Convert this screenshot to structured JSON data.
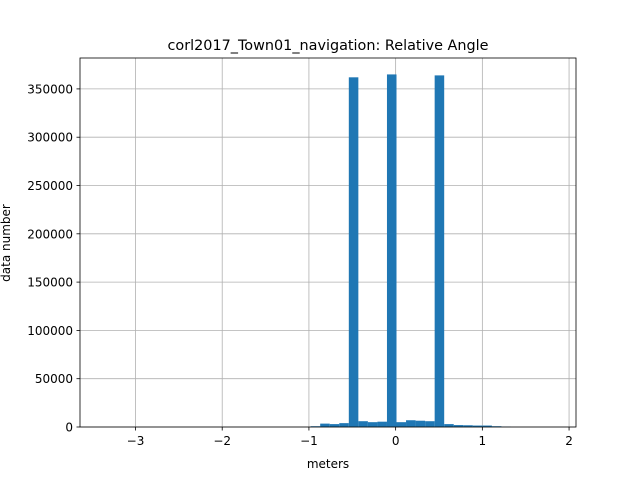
{
  "chart_data": {
    "type": "bar",
    "title": "corl2017_Town01_navigation: Relative Angle",
    "xlabel": "meters",
    "ylabel": "data number",
    "xlim": [
      -3.64,
      2.08
    ],
    "ylim": [
      0,
      382000
    ],
    "grid": true,
    "bar_color": "#1f77b4",
    "x_ticks": [
      -3,
      -2,
      -1,
      0,
      1,
      2
    ],
    "x_tick_labels": [
      "−3",
      "−2",
      "−1",
      "0",
      "1",
      "2"
    ],
    "y_ticks": [
      0,
      50000,
      100000,
      150000,
      200000,
      250000,
      300000,
      350000
    ],
    "y_tick_labels": [
      "0",
      "50000",
      "100000",
      "150000",
      "200000",
      "250000",
      "300000",
      "350000"
    ],
    "bins": [
      {
        "x0": -0.98,
        "x1": -0.87,
        "value": 800
      },
      {
        "x0": -0.87,
        "x1": -0.76,
        "value": 3500
      },
      {
        "x0": -0.76,
        "x1": -0.65,
        "value": 3000
      },
      {
        "x0": -0.65,
        "x1": -0.54,
        "value": 4000
      },
      {
        "x0": -0.54,
        "x1": -0.43,
        "value": 362000
      },
      {
        "x0": -0.43,
        "x1": -0.32,
        "value": 6000
      },
      {
        "x0": -0.32,
        "x1": -0.21,
        "value": 5000
      },
      {
        "x0": -0.21,
        "x1": -0.1,
        "value": 5500
      },
      {
        "x0": -0.1,
        "x1": 0.01,
        "value": 365000
      },
      {
        "x0": 0.01,
        "x1": 0.12,
        "value": 5000
      },
      {
        "x0": 0.12,
        "x1": 0.23,
        "value": 7000
      },
      {
        "x0": 0.23,
        "x1": 0.34,
        "value": 6500
      },
      {
        "x0": 0.34,
        "x1": 0.45,
        "value": 6000
      },
      {
        "x0": 0.45,
        "x1": 0.56,
        "value": 364000
      },
      {
        "x0": 0.56,
        "x1": 0.67,
        "value": 3000
      },
      {
        "x0": 0.67,
        "x1": 0.78,
        "value": 2000
      },
      {
        "x0": 0.78,
        "x1": 0.89,
        "value": 1800
      },
      {
        "x0": 0.89,
        "x1": 1.0,
        "value": 1500
      },
      {
        "x0": 1.0,
        "x1": 1.11,
        "value": 1500
      },
      {
        "x0": 1.11,
        "x1": 1.22,
        "value": 800
      },
      {
        "x0": 1.22,
        "x1": 1.33,
        "value": 300
      }
    ]
  }
}
